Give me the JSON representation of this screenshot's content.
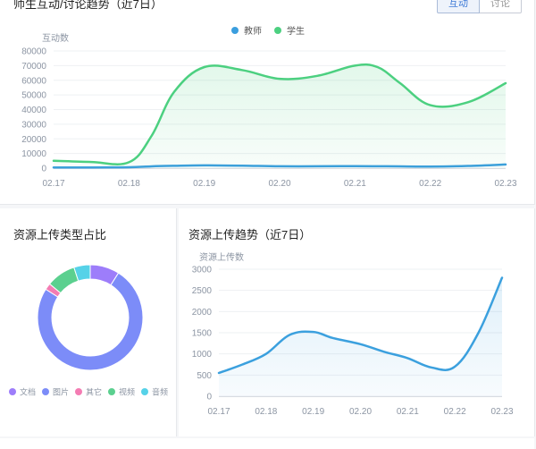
{
  "top_panel": {
    "title": "师生互动/讨论趋势（近7日）",
    "toggle": {
      "active": "互动",
      "inactive": "讨论"
    },
    "legend": [
      {
        "label": "教师",
        "color": "#3b9ede"
      },
      {
        "label": "学生",
        "color": "#4cd080"
      }
    ]
  },
  "pie_panel": {
    "title": "资源上传类型占比"
  },
  "line_panel": {
    "title": "资源上传趋势（近7日）"
  },
  "chart_data": [
    {
      "type": "area",
      "ylabel": "互动数",
      "ylim": [
        0,
        80000
      ],
      "yticks": [
        0,
        10000,
        20000,
        30000,
        40000,
        50000,
        60000,
        70000,
        80000
      ],
      "categories": [
        "02.17",
        "02.18",
        "02.19",
        "02.20",
        "02.21",
        "02.22",
        "02.23"
      ],
      "x": [
        0,
        0.5,
        1,
        1.3,
        1.6,
        2,
        2.5,
        3,
        3.5,
        4,
        4.3,
        4.6,
        5,
        5.5,
        6
      ],
      "series": [
        {
          "name": "教师",
          "color": "#3b9ede",
          "values": [
            500,
            500,
            600,
            1200,
            1600,
            1900,
            1700,
            1300,
            1300,
            1400,
            1300,
            1200,
            1100,
            1500,
            2500
          ]
        },
        {
          "name": "学生",
          "color": "#4cd080",
          "values": [
            5000,
            4200,
            4000,
            22000,
            52000,
            69000,
            67000,
            61000,
            63000,
            70000,
            69000,
            58000,
            43000,
            45000,
            58000
          ]
        }
      ],
      "legend": "top-center",
      "grid": true
    },
    {
      "type": "pie",
      "donut": true,
      "legend": "bottom",
      "slices": [
        {
          "label": "文档",
          "value": 9,
          "color": "#9d7dfa"
        },
        {
          "label": "图片",
          "value": 75,
          "color": "#7c8cf8"
        },
        {
          "label": "其它",
          "value": 2,
          "color": "#f47cb3"
        },
        {
          "label": "视频",
          "value": 9,
          "color": "#5bd08f"
        },
        {
          "label": "音频",
          "value": 5,
          "color": "#56d2e8"
        }
      ]
    },
    {
      "type": "area",
      "ylabel": "资源上传数",
      "ylim": [
        0,
        3000
      ],
      "yticks": [
        0,
        500,
        1000,
        1500,
        2000,
        2500,
        3000
      ],
      "categories": [
        "02.17",
        "02.18",
        "02.19",
        "02.20",
        "02.21",
        "02.22",
        "02.23"
      ],
      "x": [
        0,
        0.5,
        1,
        1.5,
        2,
        2.4,
        3,
        3.5,
        4,
        4.5,
        5,
        5.5,
        6
      ],
      "series": [
        {
          "name": "",
          "color": "#3ba0de",
          "values": [
            550,
            750,
            1000,
            1450,
            1520,
            1380,
            1230,
            1050,
            900,
            680,
            700,
            1500,
            2800
          ]
        }
      ],
      "grid": true
    }
  ]
}
